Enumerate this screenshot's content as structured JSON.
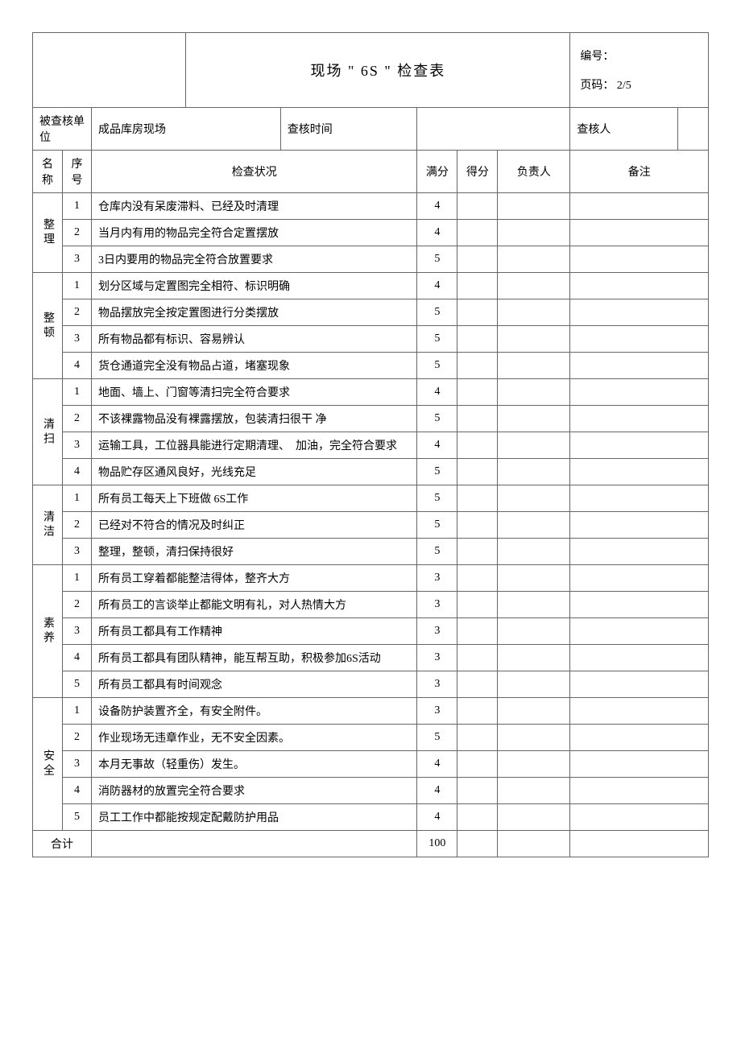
{
  "header": {
    "title": "现场 \" 6S \" 检查表",
    "doc_no_label": "编号：",
    "doc_no_value": "",
    "page_label": "页码：",
    "page_value": "2/5"
  },
  "info": {
    "unit_label": "被查核单位",
    "unit_value": "成品库房现场",
    "time_label": "查核时间",
    "time_value": "",
    "auditor_label": "查核人",
    "auditor_value": ""
  },
  "columns": {
    "name": "名称",
    "seq": "序号",
    "desc": "检查状况",
    "full": "满分",
    "got": "得分",
    "owner": "负责人",
    "note": "备注"
  },
  "categories": [
    {
      "name": "整理",
      "rows": [
        {
          "seq": "1",
          "desc": "仓库内没有呆废滞料、已经及时清理",
          "full": "4"
        },
        {
          "seq": "2",
          "desc": "当月内有用的物品完全符合定置摆放",
          "full": "4"
        },
        {
          "seq": "3",
          "desc": "3日内要用的物品完全符合放置要求",
          "full": "5"
        }
      ]
    },
    {
      "name": "整顿",
      "rows": [
        {
          "seq": "1",
          "desc": "划分区域与定置图完全相符、标识明确",
          "full": "4"
        },
        {
          "seq": "2",
          "desc": "物品摆放完全按定置图进行分类摆放",
          "full": "5"
        },
        {
          "seq": "3",
          "desc": "所有物品都有标识、容易辨认",
          "full": "5"
        },
        {
          "seq": "4",
          "desc": "货仓通道完全没有物品占道，堵塞现象",
          "full": "5"
        }
      ]
    },
    {
      "name": "清扫",
      "rows": [
        {
          "seq": "1",
          "desc": "地面、墙上、门窗等清扫完全符合要求",
          "full": "4"
        },
        {
          "seq": "2",
          "desc": "不该裸露物品没有裸露摆放，包装清扫很干 净",
          "full": "5"
        },
        {
          "seq": "3",
          "desc": "运输工具，工位器具能进行定期清理、　加油，完全符合要求",
          "full": "4"
        },
        {
          "seq": "4",
          "desc": "物品贮存区通风良好，光线充足",
          "full": "5"
        }
      ]
    },
    {
      "name": "清洁",
      "rows": [
        {
          "seq": "1",
          "desc": "所有员工每天上下班做 6S工作",
          "full": "5"
        },
        {
          "seq": "2",
          "desc": "已经对不符合的情况及时纠正",
          "full": "5"
        },
        {
          "seq": "3",
          "desc": "整理，整顿，清扫保持很好",
          "full": "5"
        }
      ]
    },
    {
      "name": "素养",
      "rows": [
        {
          "seq": "1",
          "desc": "所有员工穿着都能整洁得体，整齐大方",
          "full": "3"
        },
        {
          "seq": "2",
          "desc": "所有员工的言谈举止都能文明有礼，对人热情大方",
          "full": "3"
        },
        {
          "seq": "3",
          "desc": "所有员工都具有工作精神",
          "full": "3"
        },
        {
          "seq": "4",
          "desc": "所有员工都具有团队精神，能互帮互助，积极参加6S活动",
          "full": "3"
        },
        {
          "seq": "5",
          "desc": "所有员工都具有时间观念",
          "full": "3"
        }
      ]
    },
    {
      "name": "安全",
      "rows": [
        {
          "seq": "1",
          "desc": "设备防护装置齐全，有安全附件。",
          "full": "3"
        },
        {
          "seq": "2",
          "desc": "作业现场无违章作业，无不安全因素。",
          "full": "5"
        },
        {
          "seq": "3",
          "desc": "本月无事故（轻重伤）发生。",
          "full": "4"
        },
        {
          "seq": "4",
          "desc": "消防器材的放置完全符合要求",
          "full": "4"
        },
        {
          "seq": "5",
          "desc": "员工工作中都能按规定配戴防护用品",
          "full": "4"
        }
      ]
    }
  ],
  "total": {
    "label": "合计",
    "value": "100"
  }
}
